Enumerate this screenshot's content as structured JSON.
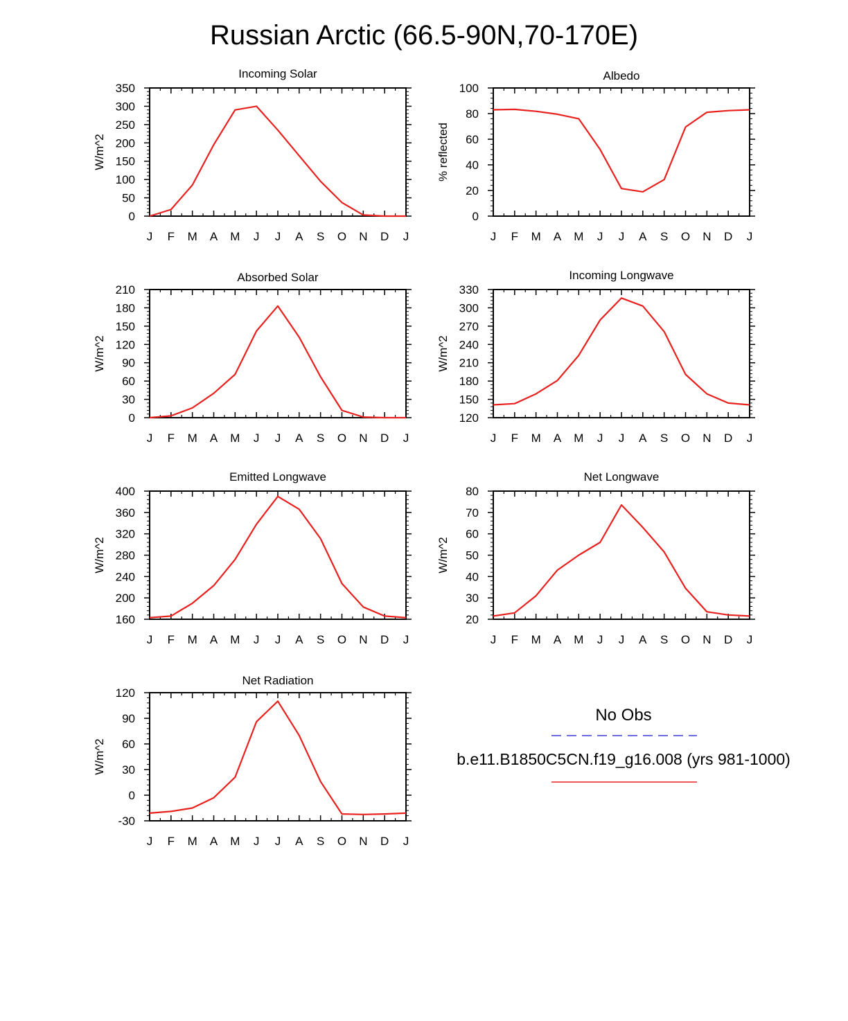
{
  "page_title": "Russian Arctic (66.5-90N,70-170E)",
  "months": [
    "J",
    "F",
    "M",
    "A",
    "M",
    "J",
    "J",
    "A",
    "S",
    "O",
    "N",
    "D",
    "J"
  ],
  "legend": {
    "obs_label": "No Obs",
    "model_label": "b.e11.B1850C5CN.f19_g16.008 (yrs 981-1000)",
    "obs_color": "#3b3bd8",
    "model_color": "#e8201e"
  },
  "chart_data": [
    {
      "type": "line",
      "title": "Incoming Solar",
      "ylabel": "W/m^2",
      "ylim": [
        0,
        350
      ],
      "yticks": [
        0,
        50,
        100,
        150,
        200,
        250,
        300,
        350
      ],
      "series": [
        {
          "values": [
            0,
            18,
            85,
            195,
            290,
            300,
            235,
            165,
            95,
            37,
            3,
            0,
            0
          ]
        }
      ]
    },
    {
      "type": "line",
      "title": "Albedo",
      "ylabel": "% reflected",
      "ylim": [
        0,
        100
      ],
      "yticks": [
        0,
        20,
        40,
        60,
        80,
        100
      ],
      "series": [
        {
          "values": [
            83,
            83.3,
            81.8,
            79.5,
            76,
            52,
            21.5,
            19,
            28.5,
            69.5,
            81,
            82.3,
            83
          ]
        }
      ]
    },
    {
      "type": "line",
      "title": "Absorbed Solar",
      "ylabel": "W/m^2",
      "ylim": [
        0,
        210
      ],
      "yticks": [
        0,
        30,
        60,
        90,
        120,
        150,
        180,
        210
      ],
      "series": [
        {
          "values": [
            0,
            3,
            16,
            40,
            71,
            142,
            183,
            132,
            67,
            12,
            1,
            0,
            0
          ]
        }
      ]
    },
    {
      "type": "line",
      "title": "Incoming Longwave",
      "ylabel": "W/m^2",
      "ylim": [
        120,
        330
      ],
      "yticks": [
        120,
        150,
        180,
        210,
        240,
        270,
        300,
        330
      ],
      "series": [
        {
          "values": [
            141,
            143,
            159,
            181,
            222,
            280,
            316,
            303,
            261,
            191,
            159,
            144,
            141
          ]
        }
      ]
    },
    {
      "type": "line",
      "title": "Emitted Longwave",
      "ylabel": "W/m^2",
      "ylim": [
        160,
        400
      ],
      "yticks": [
        160,
        200,
        240,
        280,
        320,
        360,
        400
      ],
      "series": [
        {
          "values": [
            163,
            166,
            190,
            223,
            272,
            338,
            390,
            366,
            311,
            227,
            183,
            166,
            163
          ]
        }
      ]
    },
    {
      "type": "line",
      "title": "Net Longwave",
      "ylabel": "W/m^2",
      "ylim": [
        20,
        80
      ],
      "yticks": [
        20,
        30,
        40,
        50,
        60,
        70,
        80
      ],
      "series": [
        {
          "values": [
            21.5,
            23,
            31,
            43,
            50,
            56,
            73.5,
            63,
            51.5,
            34.5,
            23.5,
            22,
            21.5
          ]
        }
      ]
    },
    {
      "type": "line",
      "title": "Net Radiation",
      "ylabel": "W/m^2",
      "ylim": [
        -30,
        120
      ],
      "yticks": [
        -30,
        0,
        30,
        60,
        90,
        120
      ],
      "series": [
        {
          "values": [
            -21,
            -19,
            -15,
            -3,
            21,
            86,
            110,
            70,
            16,
            -22,
            -22.5,
            -22,
            -21
          ]
        }
      ]
    }
  ]
}
